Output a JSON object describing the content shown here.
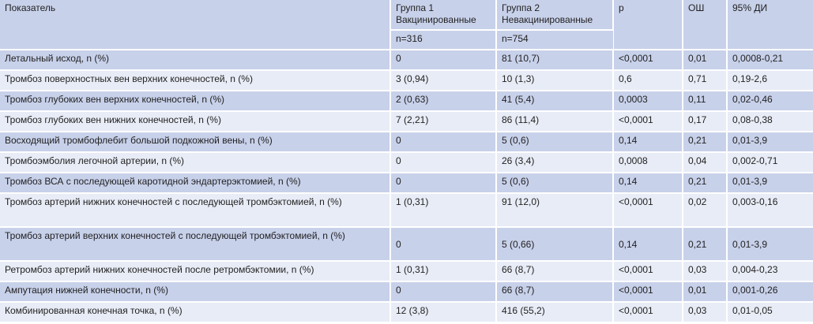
{
  "table": {
    "headers": {
      "indicator": "Показатель",
      "group1_line1": "Группа 1",
      "group1_line2": "Вакцинированные",
      "group2_line1": "Группа 2",
      "group2_line2": "Невакцинированные",
      "p": "p",
      "or": "ОШ",
      "ci": "95% ДИ",
      "group1_n": "n=316",
      "group2_n": "n=754"
    },
    "rows": [
      {
        "indicator": "Летальный исход, n (%)",
        "g1": "0",
        "g2": "81 (10,7)",
        "p": "<0,0001",
        "or": "0,01",
        "ci": "0,0008-0,21"
      },
      {
        "indicator": "Тромбоз поверхностных вен верхних конечностей, n (%)",
        "g1": "3 (0,94)",
        "g2": "10 (1,3)",
        "p": "0,6",
        "or": "0,71",
        "ci": "0,19-2,6"
      },
      {
        "indicator": "Тромбоз глубоких вен верхних конечностей, n (%)",
        "g1": "2 (0,63)",
        "g2": "41 (5,4)",
        "p": "0,0003",
        "or": "0,11",
        "ci": "0,02-0,46"
      },
      {
        "indicator": "Тромбоз глубоких вен нижних конечностей, n (%)",
        "g1": "7 (2,21)",
        "g2": "86 (11,4)",
        "p": "<0,0001",
        "or": "0,17",
        "ci": "0,08-0,38"
      },
      {
        "indicator": "Восходящий тромбофлебит большой подкожной вены, n (%)",
        "g1": "0",
        "g2": "5 (0,6)",
        "p": "0,14",
        "or": "0,21",
        "ci": "0,01-3,9"
      },
      {
        "indicator": "Тромбоэмболия легочной артерии, n (%)",
        "g1": "0",
        "g2": "26 (3,4)",
        "p": "0,0008",
        "or": "0,04",
        "ci": "0,002-0,71"
      },
      {
        "indicator": "Тромбоз ВСА с последующей каротидной эндартерэктомией, n (%)",
        "g1": "0",
        "g2": "5 (0,6)",
        "p": "0,14",
        "or": "0,21",
        "ci": "0,01-3,9"
      },
      {
        "indicator": "Тромбоз артерий нижних конечностей с последующей тромбэктомией, n (%)",
        "g1": "1 (0,31)",
        "g2": "91 (12,0)",
        "p": "<0,0001",
        "or": "0,02",
        "ci": "0,003-0,16"
      },
      {
        "indicator": "Тромбоз артерий верхних конечностей с последующей тромбэктомией, n (%)",
        "g1": "0",
        "g2": "5 (0,66)",
        "p": "0,14",
        "or": "0,21",
        "ci": "0,01-3,9"
      },
      {
        "indicator": "Ретромбоз артерий нижних конечностей после ретромбэктомии, n (%)",
        "g1": "1 (0,31)",
        "g2": "66 (8,7)",
        "p": "<0,0001",
        "or": "0,03",
        "ci": "0,004-0,23"
      },
      {
        "indicator": "Ампутация нижней конечности, n (%)",
        "g1": "0",
        "g2": "66 (8,7)",
        "p": "<0,0001",
        "or": "0,01",
        "ci": "0,001-0,26"
      },
      {
        "indicator": "Комбинированная конечная точка, n (%)",
        "g1": "12 (3,8)",
        "g2": "416 (55,2)",
        "p": "<0,0001",
        "or": "0,03",
        "ci": "0,01-0,05"
      }
    ]
  },
  "colors": {
    "header_bg": "#c8d1ea",
    "row_dark": "#c8d1ea",
    "row_light": "#e8ecf6",
    "text": "#222222"
  }
}
